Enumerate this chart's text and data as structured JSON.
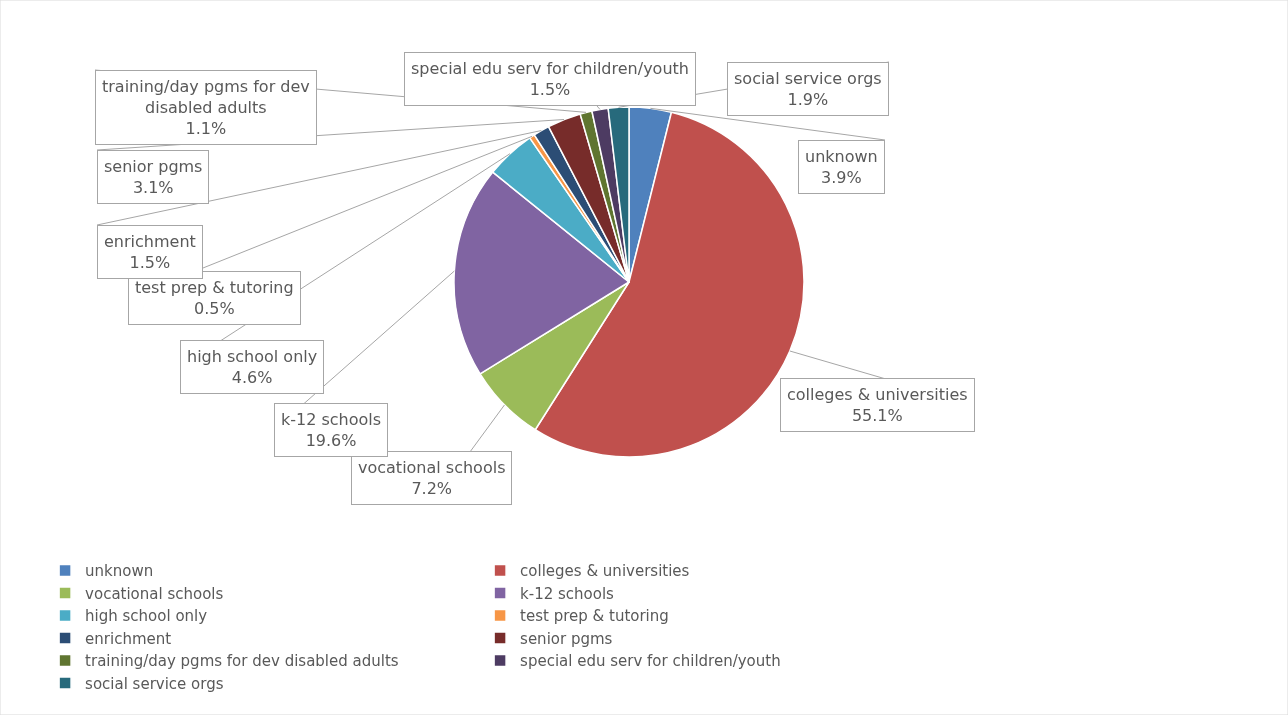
{
  "chart_data": {
    "type": "pie",
    "categories": [
      "unknown",
      "colleges & universities",
      "vocational schools",
      "k-12 schools",
      "high school only",
      "test prep & tutoring",
      "enrichment",
      "senior pgms",
      "training/day pgms for dev disabled adults",
      "special edu serv for children/youth",
      "social service orgs"
    ],
    "values": [
      3.9,
      55.1,
      7.2,
      19.6,
      4.6,
      0.5,
      1.5,
      3.1,
      1.1,
      1.5,
      1.9
    ],
    "value_labels": [
      "3.9%",
      "55.1%",
      "7.2%",
      "19.6%",
      "4.6%",
      "0.5%",
      "1.5%",
      "3.1%",
      "1.1%",
      "1.5%",
      "1.9%"
    ],
    "colors": [
      "#4f81bd",
      "#c0504d",
      "#9bbb59",
      "#8064a2",
      "#4bacc6",
      "#f79646",
      "#2c4d75",
      "#772c2a",
      "#5f7530",
      "#4d3b62",
      "#276a7c"
    ],
    "legend": "bottom"
  }
}
